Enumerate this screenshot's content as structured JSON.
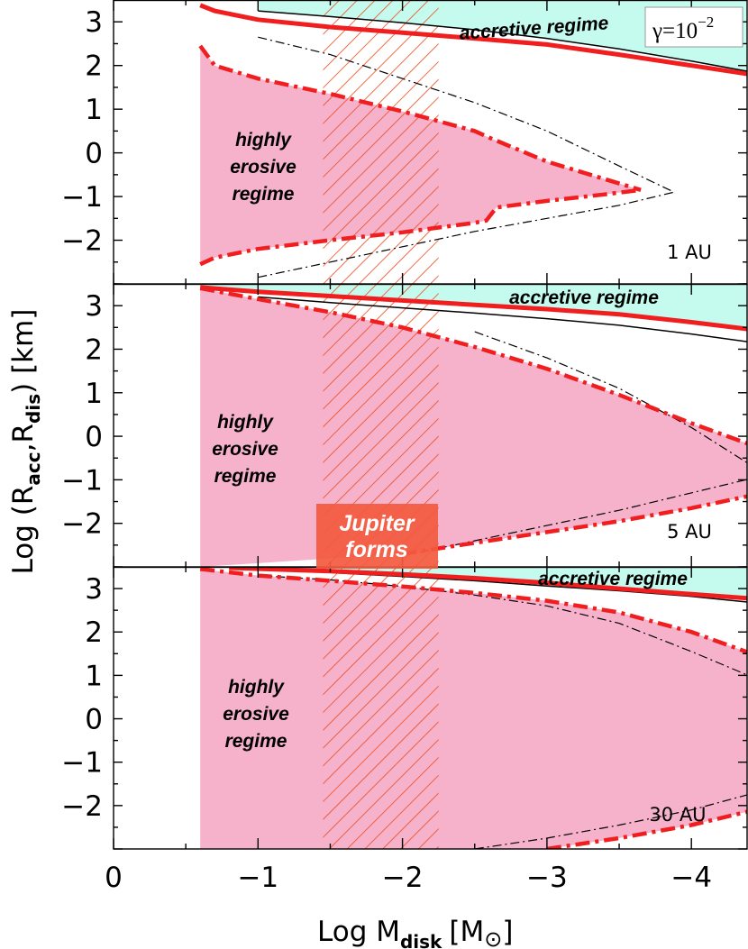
{
  "chart_data": {
    "type": "line",
    "title": "",
    "xlabel": "Log M",
    "xlabel_sub": "disk",
    "xlabel_unit_open": "[M",
    "xlabel_unit_sym": "⊙",
    "xlabel_unit_close": "]",
    "ylabel_pre": "Log (R",
    "ylabel_sub1": "acc",
    "ylabel_mid": ",R",
    "ylabel_sub2": "dis",
    "ylabel_post": ") [km]",
    "x_axis": {
      "range": [
        0,
        -4.5
      ],
      "reversed": true,
      "ticks": [
        0,
        -1,
        -2,
        -3,
        -4
      ],
      "tick_labels": [
        "0",
        "−1",
        "−2",
        "−3",
        "−4"
      ]
    },
    "y_axis": {
      "range": [
        -3,
        3.5
      ],
      "ticks": [
        -2,
        -1,
        0,
        1,
        2,
        3
      ],
      "tick_labels": [
        "−2",
        "−1",
        "0",
        "1",
        "2",
        "3"
      ]
    },
    "colors": {
      "accretive_fill": "#c4fbee",
      "erosive_fill": "#f6b2cb",
      "red_curve": "#f01e1e",
      "black_curve": "#000000",
      "hatch": "#ec4a1a",
      "jupiter_box": "#f35a40"
    },
    "hatched_band_x": [
      -1.45,
      -2.25
    ],
    "gamma_label": "γ=10",
    "gamma_exp": "−2",
    "jupiter_label_line1": "Jupiter",
    "jupiter_label_line2": "forms",
    "panels": [
      {
        "label": "1 AU",
        "accretive_label": "accretive regime",
        "erosive_label_lines": [
          "highly",
          "erosive",
          "regime"
        ],
        "red_solid": {
          "x": [
            -0.6,
            -0.7,
            -1.0,
            -1.5,
            -2.0,
            -2.5,
            -3.0,
            -3.5,
            -4.0,
            -4.5
          ],
          "y": [
            3.38,
            3.25,
            3.05,
            2.88,
            2.75,
            2.62,
            2.48,
            2.25,
            2.0,
            1.75
          ]
        },
        "black_solid": {
          "x": [
            -1.0,
            -1.5,
            -2.0,
            -2.5,
            -3.0,
            -3.5,
            -4.0,
            -4.5
          ],
          "y": [
            3.25,
            3.12,
            2.98,
            2.82,
            2.62,
            2.38,
            2.1,
            1.8
          ]
        },
        "red_dashdot_upper": {
          "x": [
            -0.6,
            -0.7,
            -1.0,
            -1.5,
            -2.0,
            -2.5,
            -2.6,
            -3.0,
            -3.4,
            -3.65
          ],
          "y": [
            2.45,
            2.0,
            1.7,
            1.35,
            0.95,
            0.5,
            0.35,
            -0.2,
            -0.6,
            -0.85
          ]
        },
        "red_dashdot_lower": {
          "x": [
            -0.6,
            -0.7,
            -1.0,
            -1.5,
            -2.0,
            -2.5,
            -2.58,
            -2.65,
            -3.0,
            -3.4,
            -3.65
          ],
          "y": [
            -2.55,
            -2.4,
            -2.2,
            -2.0,
            -1.82,
            -1.6,
            -1.55,
            -1.25,
            -1.1,
            -0.95,
            -0.85
          ]
        },
        "black_dashdot_upper": {
          "x": [
            -1.0,
            -1.5,
            -2.0,
            -2.5,
            -3.0,
            -3.5,
            -3.88
          ],
          "y": [
            2.65,
            2.25,
            1.7,
            1.15,
            0.5,
            -0.3,
            -0.9
          ]
        },
        "black_dashdot_lower": {
          "x": [
            -1.0,
            -1.5,
            -2.0,
            -2.5,
            -3.0,
            -3.5,
            -3.88
          ],
          "y": [
            -2.85,
            -2.5,
            -2.15,
            -1.8,
            -1.5,
            -1.2,
            -0.9
          ]
        }
      },
      {
        "label": "5 AU",
        "accretive_label": "accretive regime",
        "erosive_label_lines": [
          "highly",
          "erosive",
          "regime"
        ],
        "red_solid": {
          "x": [
            -0.6,
            -1.0,
            -1.5,
            -2.0,
            -2.5,
            -3.0,
            -3.5,
            -4.0,
            -4.5
          ],
          "y": [
            3.42,
            3.32,
            3.22,
            3.12,
            3.02,
            2.92,
            2.8,
            2.62,
            2.42
          ]
        },
        "black_solid": {
          "x": [
            -1.0,
            -1.5,
            -2.0,
            -2.5,
            -3.0,
            -3.5,
            -4.0,
            -4.5
          ],
          "y": [
            3.2,
            3.07,
            2.95,
            2.83,
            2.7,
            2.55,
            2.35,
            2.12
          ]
        },
        "red_dashdot_upper": {
          "x": [
            -0.6,
            -1.0,
            -1.5,
            -2.0,
            -2.5,
            -3.0,
            -3.5,
            -4.0,
            -4.5
          ],
          "y": [
            3.4,
            3.15,
            2.85,
            2.5,
            2.05,
            1.55,
            0.95,
            0.3,
            -0.3
          ]
        },
        "red_dashdot_lower": {
          "x": [
            -2.0,
            -2.5,
            -3.0,
            -3.5,
            -4.0,
            -4.5
          ],
          "y": [
            -2.7,
            -2.45,
            -2.2,
            -1.95,
            -1.65,
            -1.3
          ]
        },
        "black_dashdot_upper": {
          "x": [
            -2.5,
            -3.0,
            -3.5,
            -4.0,
            -4.5
          ],
          "y": [
            2.4,
            1.8,
            1.1,
            0.2,
            -0.85
          ]
        },
        "black_dashdot_lower": {
          "x": [
            -2.0,
            -2.5,
            -3.0,
            -3.5,
            -4.0,
            -4.5
          ],
          "y": [
            -2.75,
            -2.4,
            -2.05,
            -1.7,
            -1.3,
            -0.9
          ]
        }
      },
      {
        "label": "30 AU",
        "accretive_label": "accretive regime",
        "erosive_label_lines": [
          "highly",
          "erosive",
          "regime"
        ],
        "red_solid": {
          "x": [
            -0.8,
            -1.5,
            -2.0,
            -2.5,
            -3.0,
            -3.5,
            -4.0,
            -4.5
          ],
          "y": [
            3.48,
            3.4,
            3.33,
            3.24,
            3.13,
            3.0,
            2.87,
            2.75
          ]
        },
        "black_solid": {
          "x": [
            -1.0,
            -1.5,
            -2.0,
            -2.5,
            -3.0,
            -3.5,
            -4.0,
            -4.5
          ],
          "y": [
            3.45,
            3.37,
            3.28,
            3.18,
            3.06,
            2.95,
            2.82,
            2.65
          ]
        },
        "red_dashdot_upper": {
          "x": [
            -0.6,
            -1.0,
            -1.5,
            -2.0,
            -2.5,
            -3.0,
            -3.5,
            -4.0,
            -4.5
          ],
          "y": [
            3.45,
            3.3,
            3.18,
            3.05,
            2.9,
            2.72,
            2.45,
            2.0,
            1.4
          ]
        },
        "red_dashdot_lower": {
          "x": [
            -3.0,
            -3.5,
            -4.0,
            -4.5
          ],
          "y": [
            -3.0,
            -2.75,
            -2.45,
            -2.05
          ]
        },
        "black_dashdot_upper": {
          "x": [
            -1.0,
            -1.5,
            -2.0,
            -2.5,
            -3.0,
            -3.5,
            -4.0,
            -4.5
          ],
          "y": [
            3.3,
            3.2,
            3.05,
            2.85,
            2.6,
            2.2,
            1.55,
            0.85
          ]
        },
        "black_dashdot_lower": {
          "x": [
            -2.5,
            -3.0,
            -3.5,
            -4.0,
            -4.5
          ],
          "y": [
            -3.0,
            -2.75,
            -2.45,
            -2.1,
            -1.65
          ]
        }
      }
    ]
  }
}
